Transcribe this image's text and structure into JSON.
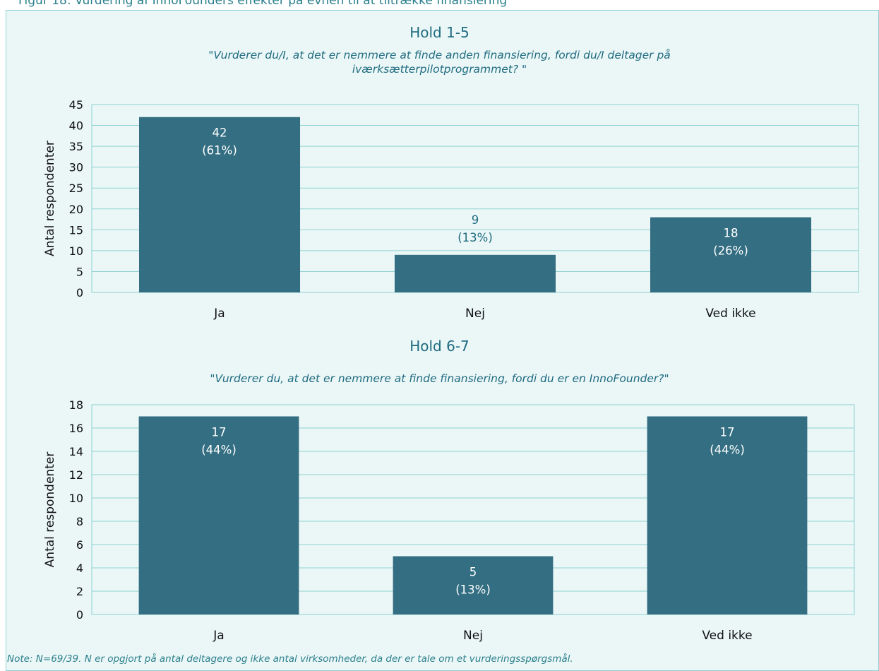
{
  "figure_caption": "Figur 18: Vurdering af InnoFounders effekter på evnen til at tiltrække finansiering",
  "note": "Note: N=69/39. N er opgjort på antal deltagere og ikke antal virksomheder, da der er tale om et vurderingsspørgsmål.",
  "colors": {
    "bar": "#336e82",
    "grid": "#8fd1d1",
    "panel": "#ebf7f7",
    "text": "#1f6b80",
    "axis_text": "#111111",
    "bar_label": "#ffffff"
  },
  "chart_data": [
    {
      "type": "bar",
      "title": "Hold 1-5",
      "subtitle_lines": [
        "\"Vurderer du/I, at det er nemmere at finde anden finansiering, fordi du/I deltager på",
        "iværksætterpilotprogrammet? \""
      ],
      "ylabel": "Antal respondenter",
      "xlabel": "",
      "categories": [
        "Ja",
        "Nej",
        "Ved ikke"
      ],
      "values": [
        42,
        9,
        18
      ],
      "data_labels": [
        [
          "42",
          "(61%)"
        ],
        [
          "9",
          "(13%)"
        ],
        [
          "18",
          "(26%)"
        ]
      ],
      "ylim": [
        0,
        45
      ],
      "yticks": [
        0,
        5,
        10,
        15,
        20,
        25,
        30,
        35,
        40,
        45
      ],
      "grid": true
    },
    {
      "type": "bar",
      "title": "Hold 6-7",
      "subtitle_lines": [
        "\"Vurderer du, at det er nemmere at finde finansiering, fordi du er en InnoFounder?\""
      ],
      "ylabel": "Antal respondenter",
      "xlabel": "",
      "categories": [
        "Ja",
        "Nej",
        "Ved ikke"
      ],
      "values": [
        17,
        5,
        17
      ],
      "data_labels": [
        [
          "17",
          "(44%)"
        ],
        [
          "5",
          "(13%)"
        ],
        [
          "17",
          "(44%)"
        ]
      ],
      "ylim": [
        0,
        18
      ],
      "yticks": [
        0,
        2,
        4,
        6,
        8,
        10,
        12,
        14,
        16,
        18
      ],
      "grid": true
    }
  ]
}
